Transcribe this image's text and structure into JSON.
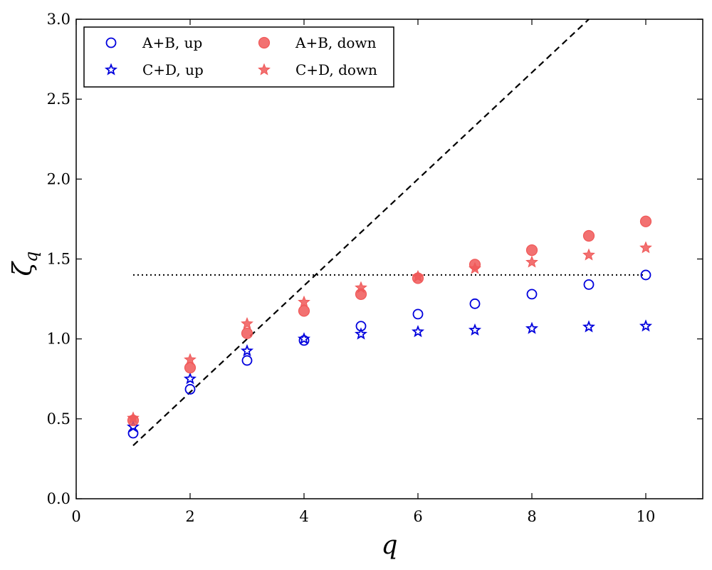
{
  "chart_data": {
    "type": "scatter",
    "title": "",
    "xlabel": "q",
    "ylabel_main": "ζ",
    "ylabel_sub": "q",
    "xlim": [
      0,
      11
    ],
    "ylim": [
      0.0,
      3.0
    ],
    "x_ticks": [
      0,
      2,
      4,
      6,
      8,
      10
    ],
    "x_tick_labels": [
      "0",
      "2",
      "4",
      "6",
      "8",
      "10"
    ],
    "y_ticks": [
      0.0,
      0.5,
      1.0,
      1.5,
      2.0,
      2.5,
      3.0
    ],
    "y_tick_labels": [
      "0.0",
      "0.5",
      "1.0",
      "1.5",
      "2.0",
      "2.5",
      "3.0"
    ],
    "grid": false,
    "legend_position": "top-left",
    "series": [
      {
        "name": "A+B, up",
        "marker": "circle-open",
        "color": "#0000dd",
        "x": [
          1,
          2,
          3,
          4,
          5,
          6,
          7,
          8,
          9,
          10
        ],
        "values": [
          0.41,
          0.685,
          0.865,
          0.99,
          1.08,
          1.155,
          1.22,
          1.28,
          1.34,
          1.4
        ]
      },
      {
        "name": "C+D, up",
        "marker": "star-open",
        "color": "#0000dd",
        "x": [
          1,
          2,
          3,
          4,
          5,
          6,
          7,
          8,
          9,
          10
        ],
        "values": [
          0.45,
          0.75,
          0.925,
          1.0,
          1.03,
          1.045,
          1.055,
          1.065,
          1.075,
          1.08
        ]
      },
      {
        "name": "A+B, down",
        "marker": "circle-filled",
        "color": "#f05858",
        "x": [
          1,
          2,
          3,
          4,
          5,
          6,
          7,
          8,
          9,
          10
        ],
        "values": [
          0.49,
          0.82,
          1.035,
          1.175,
          1.28,
          1.38,
          1.465,
          1.555,
          1.645,
          1.735
        ]
      },
      {
        "name": "C+D, down",
        "marker": "star-filled",
        "color": "#f05858",
        "x": [
          1,
          2,
          3,
          4,
          5,
          6,
          7,
          8,
          9,
          10
        ],
        "values": [
          0.505,
          0.87,
          1.095,
          1.23,
          1.32,
          1.39,
          1.44,
          1.48,
          1.525,
          1.57
        ]
      }
    ],
    "reference_lines": [
      {
        "name": "dashed-line",
        "style": "dashed",
        "x": [
          1,
          9
        ],
        "y": [
          0.333,
          3.0
        ]
      },
      {
        "name": "dotted-line",
        "style": "dotted",
        "x": [
          1,
          10
        ],
        "y": [
          1.4,
          1.4
        ]
      }
    ]
  }
}
